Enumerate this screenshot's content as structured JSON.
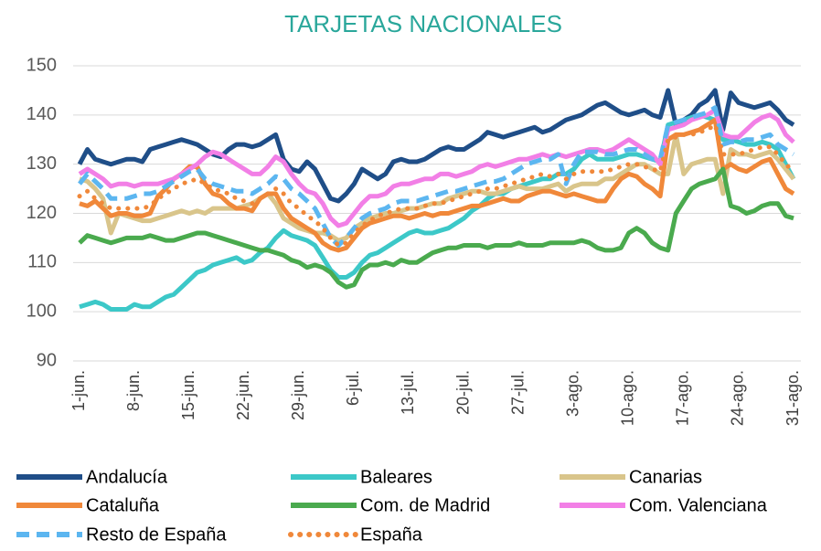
{
  "chart_data": {
    "type": "line",
    "title": "TARJETAS NACIONALES",
    "categories": [
      "1-jun.",
      null,
      null,
      null,
      null,
      null,
      null,
      "8-jun.",
      null,
      null,
      null,
      null,
      null,
      null,
      "15-jun.",
      null,
      null,
      null,
      null,
      null,
      null,
      "22-jun.",
      null,
      null,
      null,
      null,
      null,
      null,
      "29-jun.",
      null,
      null,
      null,
      null,
      null,
      null,
      "6-jul.",
      null,
      null,
      null,
      null,
      null,
      null,
      "13-jul.",
      null,
      null,
      null,
      null,
      null,
      null,
      "20-jul.",
      null,
      null,
      null,
      null,
      null,
      null,
      "27-jul.",
      null,
      null,
      null,
      null,
      null,
      null,
      "3-ago.",
      null,
      null,
      null,
      null,
      null,
      null,
      "10-ago.",
      null,
      null,
      null,
      null,
      null,
      null,
      "17-ago.",
      null,
      null,
      null,
      null,
      null,
      null,
      "24-ago.",
      null,
      null,
      null,
      null,
      null,
      null,
      "31-ago."
    ],
    "ylim": [
      90,
      150
    ],
    "yticks": [
      90,
      100,
      110,
      120,
      130,
      140,
      150
    ],
    "grid": true,
    "legend": "bottom",
    "series": [
      {
        "name": "Andalucía",
        "color": "#1f4e88",
        "style": "solid",
        "values": [
          130,
          133,
          131,
          130.5,
          130,
          130.5,
          131,
          131,
          130.5,
          133,
          133.5,
          134,
          134.5,
          135,
          134.5,
          134,
          133,
          132,
          131.5,
          133,
          134,
          134,
          133.5,
          134,
          135,
          136,
          131,
          129,
          128.5,
          130.5,
          129,
          126,
          123,
          122.5,
          124,
          126,
          129,
          128,
          127,
          128,
          130.5,
          131,
          130.5,
          130.5,
          131,
          132,
          133,
          133.5,
          133,
          133,
          134,
          135,
          136.5,
          136,
          135.5,
          136,
          136.5,
          137,
          137.5,
          136.5,
          137,
          138,
          139,
          139.5,
          140,
          141,
          142,
          142.5,
          141.5,
          140.5,
          140,
          140.5,
          141,
          140,
          139.5,
          145,
          138,
          139,
          140,
          142,
          143,
          145,
          137,
          144.5,
          142.5,
          142,
          141.5,
          142,
          142.5,
          141,
          139,
          138
        ]
      },
      {
        "name": "Baleares",
        "color": "#3cc8c8",
        "style": "solid",
        "values": [
          101,
          101.5,
          102,
          101.5,
          100.5,
          100.5,
          100.5,
          101.5,
          101,
          101,
          102,
          103,
          103.5,
          105,
          106.5,
          108,
          108.5,
          109.5,
          110,
          110.5,
          111,
          110,
          110.5,
          112,
          113,
          115,
          116.5,
          115.5,
          115,
          114.5,
          113.5,
          111,
          108.5,
          107,
          107,
          108,
          110,
          111.5,
          112,
          113,
          114,
          115,
          116,
          116.5,
          116,
          116,
          116.5,
          117,
          118,
          119,
          120.5,
          121.5,
          123,
          124,
          124,
          125,
          125.5,
          126,
          126.5,
          127,
          127,
          128,
          128,
          129,
          131,
          132,
          131,
          131,
          131,
          131.5,
          132,
          132,
          131.5,
          131,
          130.5,
          138,
          138.5,
          139,
          139.5,
          140,
          139.5,
          139,
          135,
          135,
          134.5,
          134,
          134,
          134.5,
          134,
          133,
          130,
          127
        ]
      },
      {
        "name": "Canarias",
        "color": "#d9c58b",
        "style": "solid",
        "values": [
          127,
          126.5,
          125,
          123,
          116,
          120,
          119.5,
          119,
          118.5,
          118.5,
          119,
          119.5,
          120,
          120.5,
          120,
          120.5,
          120,
          121,
          121,
          121,
          121,
          121.5,
          122,
          123,
          124,
          122,
          119,
          118,
          117,
          116.5,
          116,
          116,
          115.5,
          114.5,
          115,
          117,
          118,
          119,
          119.5,
          120,
          120,
          120.5,
          121,
          121,
          121.5,
          122,
          122,
          123,
          123.5,
          124,
          124.5,
          124.5,
          124,
          124,
          124.5,
          125,
          125.5,
          125,
          125,
          125,
          125.5,
          126,
          124.5,
          125.5,
          126,
          126,
          126,
          127,
          127,
          128,
          129,
          130,
          130,
          129,
          128,
          128,
          136,
          128,
          130,
          130.5,
          131,
          131,
          124,
          133,
          132,
          132,
          131.5,
          132,
          132.5,
          131,
          129,
          127
        ]
      },
      {
        "name": "Cataluña",
        "color": "#f0883a",
        "style": "solid",
        "values": [
          122,
          121.5,
          122.5,
          121,
          119.5,
          120,
          120,
          119.5,
          119.5,
          120,
          123.5,
          125,
          127,
          128,
          129.5,
          129.5,
          126,
          124,
          123.5,
          122,
          121,
          121,
          120.5,
          123,
          124,
          124,
          121,
          119,
          118,
          117,
          116,
          114,
          113,
          112.5,
          113,
          115,
          117,
          118,
          118.5,
          119,
          119.5,
          119.5,
          119,
          119.5,
          120,
          119.5,
          120,
          120,
          120.5,
          121,
          121.5,
          121.5,
          122,
          122.5,
          123,
          122.5,
          122.5,
          123.5,
          124,
          124.5,
          124.5,
          124,
          123.5,
          124,
          123.5,
          123,
          122.5,
          122.5,
          125,
          127,
          128,
          127.5,
          126,
          125,
          123.5,
          135,
          136,
          136,
          136.5,
          137,
          138,
          139,
          129,
          130,
          129,
          128.5,
          129.5,
          130.5,
          131,
          128,
          125,
          124
        ]
      },
      {
        "name": "Com. de Madrid",
        "color": "#4aaa4e",
        "style": "solid",
        "values": [
          114,
          115.5,
          115,
          114.5,
          114,
          114.5,
          115,
          115,
          115,
          115.5,
          115,
          114.5,
          114.5,
          115,
          115.5,
          116,
          116,
          115.5,
          115,
          114.5,
          114,
          113.5,
          113,
          112.5,
          112.5,
          112,
          111.5,
          110.5,
          110,
          109,
          109.5,
          109,
          108,
          106,
          105,
          105.5,
          108.5,
          109.5,
          109.5,
          110,
          109.5,
          110.5,
          110,
          110,
          111,
          112,
          112.5,
          113,
          113,
          113.5,
          113.5,
          113.5,
          113,
          113.5,
          113.5,
          113.5,
          114,
          113.5,
          113.5,
          113.5,
          114,
          114,
          114,
          114,
          114.5,
          114,
          113,
          112.5,
          112.5,
          113,
          116,
          117,
          116,
          114,
          113,
          112.5,
          120,
          122.5,
          125,
          126,
          126.5,
          127,
          129,
          121.5,
          121,
          120,
          120.5,
          121.5,
          122,
          122,
          119.5,
          119
        ]
      },
      {
        "name": "Com. Valenciana",
        "color": "#f27fe6",
        "style": "solid",
        "values": [
          128,
          129,
          128,
          127,
          125.5,
          126,
          126,
          125.5,
          126,
          126,
          126,
          126.5,
          127,
          128,
          129,
          130,
          131.5,
          132.5,
          132,
          131,
          130,
          129,
          128,
          128,
          129.5,
          131.5,
          130.5,
          128,
          126,
          124.5,
          124,
          122,
          119,
          117.5,
          118,
          120,
          122,
          123.5,
          123.5,
          124,
          125.5,
          126,
          126,
          126.5,
          127,
          127,
          128,
          128,
          127.5,
          128,
          128.5,
          129.5,
          130,
          129.5,
          130,
          130.5,
          131,
          131,
          131.5,
          132,
          131.5,
          132,
          131.5,
          132,
          132.5,
          133,
          133,
          132.5,
          133,
          134,
          135,
          134,
          133,
          132,
          130,
          137,
          137.5,
          138,
          139,
          139.5,
          140,
          141,
          136,
          135.5,
          135.5,
          137,
          138.5,
          139.5,
          140,
          139,
          136,
          134.5
        ]
      },
      {
        "name": "Resto de España",
        "color": "#5cb6f0",
        "style": "dashed",
        "values": [
          126,
          128,
          126.5,
          125,
          123,
          123,
          123,
          123.5,
          124,
          124,
          124.5,
          125.5,
          126.5,
          127.5,
          128.5,
          129,
          127,
          126,
          125.5,
          125,
          124.5,
          124.5,
          124,
          125,
          126,
          127.5,
          127,
          125,
          124,
          122.5,
          121,
          118,
          115,
          113.5,
          115,
          117,
          119,
          120,
          120.5,
          121,
          122,
          122.5,
          122.5,
          122.5,
          123,
          123.5,
          124,
          124.5,
          124.5,
          125,
          125.5,
          126,
          126.5,
          126.5,
          127,
          128,
          129,
          130,
          130.5,
          131,
          131,
          132,
          126,
          130,
          132.5,
          132.5,
          132.5,
          132,
          132,
          132.5,
          133,
          133,
          132,
          131,
          131,
          138,
          138.5,
          139,
          139.5,
          140,
          140.5,
          141.5,
          134,
          134.5,
          134.5,
          135,
          135,
          135.5,
          136,
          134,
          133,
          132
        ]
      },
      {
        "name": "España",
        "color": "#f0883a",
        "style": "dotted",
        "values": [
          123.5,
          124.5,
          123,
          122,
          121,
          121,
          121,
          121,
          121,
          121.5,
          123,
          124,
          125,
          126,
          126.5,
          127,
          126,
          125,
          124.5,
          124,
          123,
          122.5,
          122,
          123,
          124,
          125,
          124,
          122,
          121,
          119.5,
          118.5,
          117,
          115,
          113.5,
          114,
          116,
          117.5,
          118.5,
          119.5,
          120,
          120.5,
          121,
          121,
          121,
          121.5,
          122,
          122,
          122.5,
          123,
          123.5,
          124,
          124.5,
          125,
          125,
          125.5,
          126,
          126.5,
          127,
          127.5,
          128,
          127.5,
          128,
          127,
          128,
          128.5,
          128.5,
          128.5,
          128.5,
          129,
          129.5,
          130,
          130,
          129.5,
          129,
          128.5,
          135,
          135.5,
          136,
          136,
          136.5,
          137,
          138,
          132,
          132,
          132,
          132.5,
          133,
          133.5,
          133.5,
          132,
          130,
          128.5
        ]
      }
    ]
  }
}
